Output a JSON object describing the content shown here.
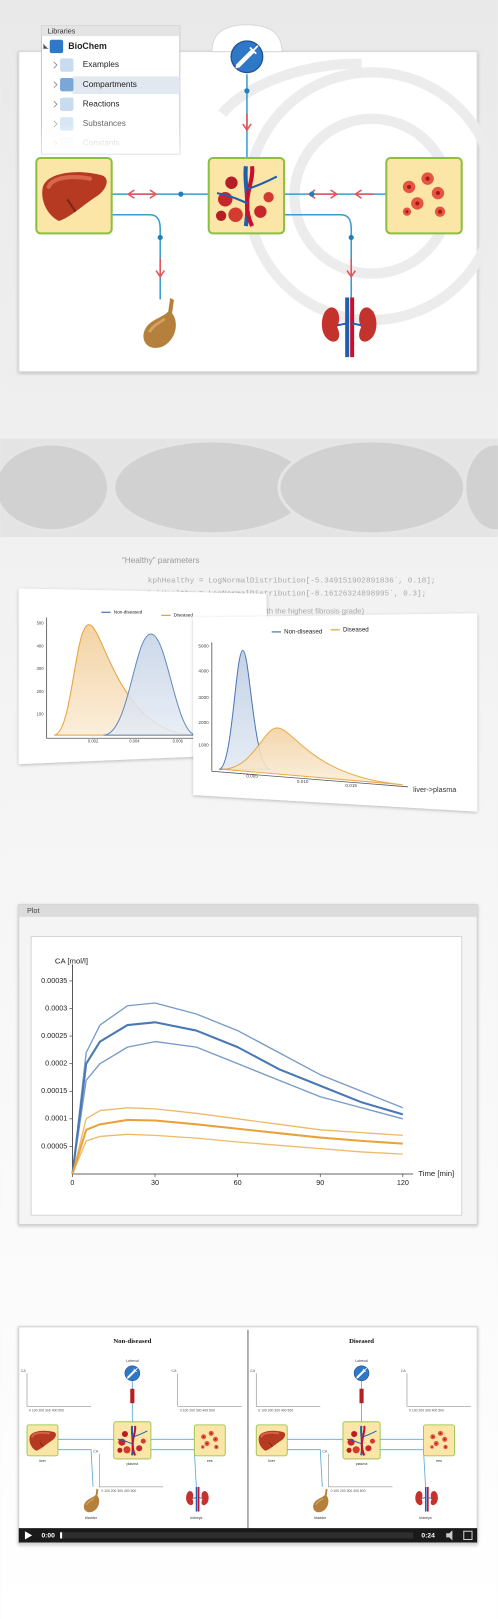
{
  "diagram": {
    "libraries": {
      "title": "Libraries",
      "items": [
        "BioChem",
        "Examples",
        "Compartments",
        "Reactions",
        "Substances",
        "Constants"
      ]
    }
  },
  "parameters": {
    "heading": "“Healthy” parameters",
    "lines": [
      "kphHealthy = LogNormalDistribution[-5.349151902891836`, 0.18];",
      "kpbHealthy = LogNormalDistribution[-8.16126324898995`, 0.3];"
    ],
    "note": "th the highest fibrosis grade)"
  },
  "distribution_plots": [
    {
      "legend": [
        "Non-diseased",
        "Diseased"
      ],
      "yticks": [
        "500",
        "400",
        "300",
        "200",
        "100"
      ],
      "xticks": [
        "0.002",
        "0.004",
        "0.006"
      ]
    },
    {
      "legend": [
        "Non-diseased",
        "Diseased"
      ],
      "yticks": [
        "5000",
        "4000",
        "3000",
        "2000",
        "1000"
      ],
      "xticks": [
        "0.005",
        "0.010",
        "0.015"
      ],
      "xlabel": "liver->plasma"
    }
  ],
  "chart_data": {
    "type": "line",
    "title": "Plot",
    "ylabel": "CA [mol/l]",
    "xlabel": "Time [min]",
    "x": [
      0,
      5,
      10,
      20,
      30,
      45,
      60,
      75,
      90,
      105,
      120
    ],
    "series": [
      {
        "color": "#4a78b4",
        "values": [
          0,
          0.00022,
          0.00027,
          0.000305,
          0.00031,
          0.00029,
          0.00026,
          0.00022,
          0.00018,
          0.00015,
          0.00012
        ]
      },
      {
        "color": "#4a78b4",
        "values": [
          0,
          0.0002,
          0.00024,
          0.00027,
          0.000275,
          0.00026,
          0.00023,
          0.00019,
          0.00016,
          0.00013,
          0.000108
        ]
      },
      {
        "color": "#4a78b4",
        "values": [
          0,
          0.00017,
          0.0002,
          0.00023,
          0.00024,
          0.00023,
          0.0002,
          0.00017,
          0.00014,
          0.00012,
          0.0001
        ]
      },
      {
        "color": "#e8a23a",
        "values": [
          0,
          0.0001,
          0.000115,
          0.00012,
          0.000118,
          0.00011,
          0.0001,
          9e-05,
          8e-05,
          7.5e-05,
          7e-05
        ]
      },
      {
        "color": "#e8a23a",
        "values": [
          0,
          8e-05,
          9e-05,
          9.8e-05,
          9.7e-05,
          9e-05,
          8.2e-05,
          7.4e-05,
          6.6e-05,
          6e-05,
          5.5e-05
        ]
      },
      {
        "color": "#e8a23a",
        "values": [
          0,
          6e-05,
          6.8e-05,
          7.2e-05,
          7e-05,
          6.5e-05,
          5.8e-05,
          5.2e-05,
          4.6e-05,
          4e-05,
          3.6e-05
        ]
      }
    ],
    "xlim": [
      0,
      120
    ],
    "ylim": [
      0,
      0.00038
    ],
    "xticks": [
      0,
      30,
      60,
      90,
      120
    ],
    "yticks": [
      5e-05,
      0.0001,
      0.00015,
      0.0002,
      0.00025,
      0.0003,
      0.00035
    ]
  },
  "video": {
    "panels": [
      {
        "title": "Non-diseased"
      },
      {
        "title": "Diseased"
      }
    ],
    "axis_label": "CA",
    "axis_ticks": "0 100 200 300 400 500",
    "dose_label": "Lohexol",
    "nodes": [
      "liver",
      "plasma",
      "ees",
      "bladder",
      "kidneys"
    ],
    "time_current": "0:00",
    "time_total": "0:24"
  }
}
